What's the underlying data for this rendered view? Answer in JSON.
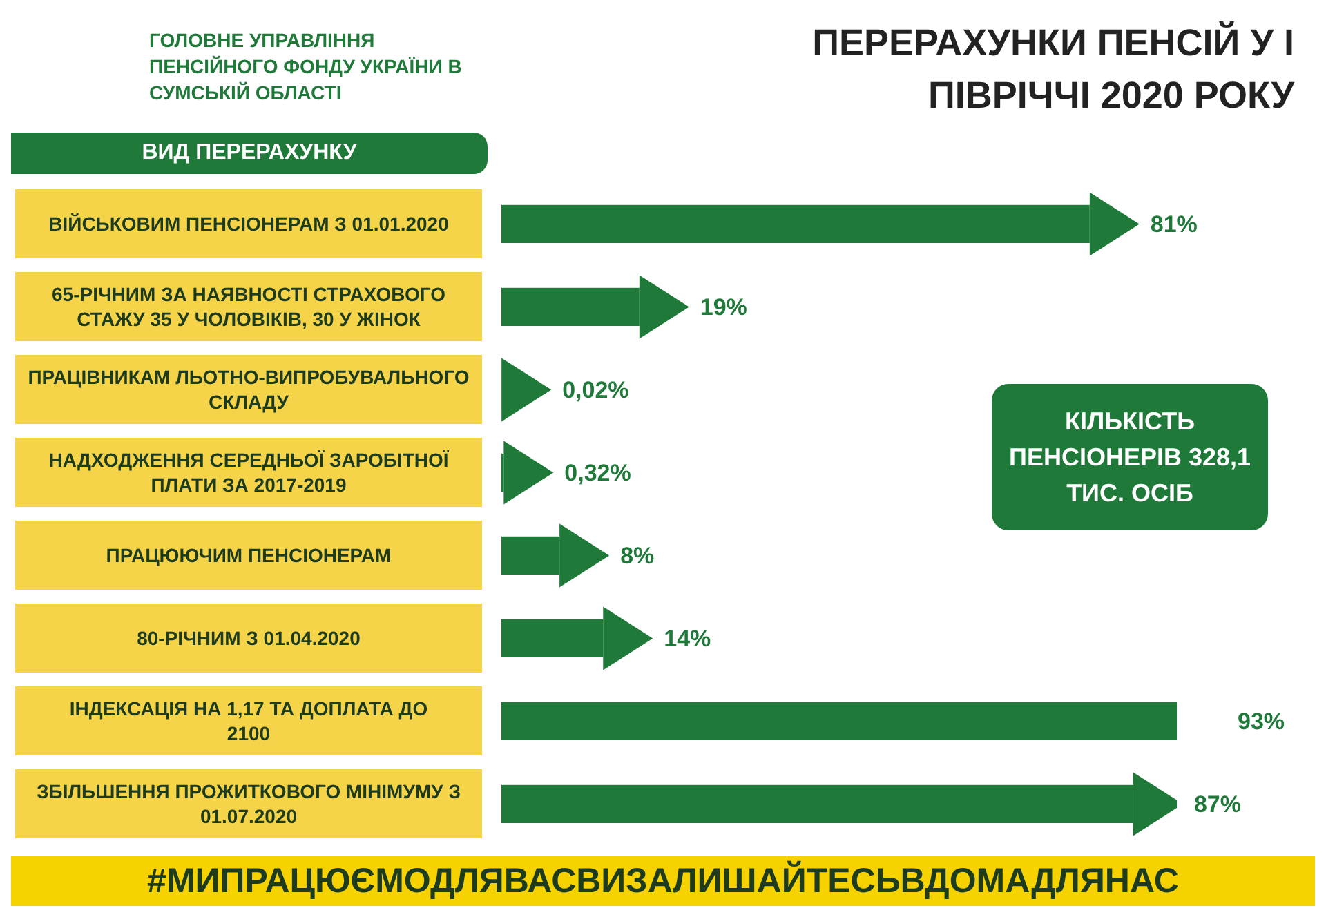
{
  "chart_data": {
    "type": "bar",
    "orientation": "horizontal",
    "title": "ПЕРЕРАХУНКИ ПЕНСІЙ У І ПІВРІЧЧІ 2020 РОКУ",
    "ylabel": "ВИД ПЕРЕРАХУНКУ",
    "categories": [
      "ВІЙСЬКОВИМ ПЕНСІОНЕРАМ З 01.01.2020",
      "65-РІЧНИМ ЗА НАЯВНОСТІ СТРАХОВОГО СТАЖУ 35 У ЧОЛОВІКІВ, 30 У ЖІНОК",
      "ПРАЦІВНИКАМ ЛЬОТНО-ВИПРОБУВАЛЬНОГО СКЛАДУ",
      "НАДХОДЖЕННЯ СЕРЕДНЬОЇ ЗАРОБІТНОЇ ПЛАТИ ЗА 2017-2019",
      "ПРАЦЮЮЧИМ ПЕНСІОНЕРАМ",
      "80-РІЧНИМ З 01.04.2020",
      "ІНДЕКСАЦІЯ НА 1,17 ТА ДОПЛАТА ДО 2100",
      "ЗБІЛЬШЕННЯ ПРОЖИТКОВОГО МІНІМУМУ З 01.07.2020"
    ],
    "values": [
      81,
      19,
      0.02,
      0.32,
      8,
      14,
      93,
      87
    ],
    "value_labels": [
      "81%",
      "19%",
      "0,02%",
      "0,32%",
      "8%",
      "14%",
      "93%",
      "87%"
    ],
    "color": "#1f7a3a",
    "tick_labels": "y",
    "annotations": [
      "ГОЛОВНЕ УПРАВЛІННЯ ПЕНСІЙНОГО ФОНДУ УКРАЇНИ В СУМСЬКІЙ ОБЛАСТІ",
      "КІЛЬКІСТЬ ПЕНСІОНЕРІВ 328,1 ТИС. ОСІБ",
      "#МИПРАЦЮЄМОДЛЯВАСВИЗАЛИШАЙТЕСЬВДОМАДЛЯНАС"
    ]
  }
}
